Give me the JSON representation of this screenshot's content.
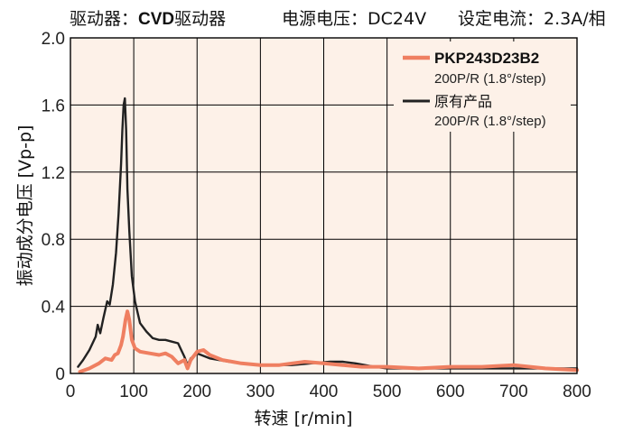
{
  "header": {
    "driver_label": "驱动器：",
    "driver_name": "CVD",
    "driver_suffix": "驱动器",
    "voltage": "电源电压：DC24V",
    "current": "设定电流：2.3A/相"
  },
  "colors": {
    "background": "#fdf1e8",
    "grid": "#000000",
    "new_series": "#ef7f61",
    "old_series": "#222222"
  },
  "chart_data": {
    "type": "line",
    "xlabel": "转速 [r/min]",
    "ylabel": "振动成分电压 [Vp-p]",
    "xlim": [
      0,
      800
    ],
    "ylim": [
      0,
      2.0
    ],
    "x_ticks": [
      0,
      100,
      200,
      300,
      400,
      500,
      600,
      700,
      800
    ],
    "y_ticks": [
      0,
      0.4,
      0.8,
      1.2,
      1.6,
      2.0
    ],
    "x_tick_labels": [
      "0",
      "100",
      "200",
      "300",
      "400",
      "500",
      "600",
      "700",
      "800"
    ],
    "y_tick_labels": [
      "0",
      "0.4",
      "0.8",
      "1.2",
      "1.6",
      "2.0"
    ],
    "grid": true,
    "legend_position": "top-right",
    "series": [
      {
        "name": "PKP243D23B2",
        "sub": "200P/R (1.8°/step)",
        "color": "#ef7f61",
        "x": [
          15,
          30,
          45,
          55,
          65,
          70,
          75,
          80,
          83,
          87,
          90,
          93,
          97,
          102,
          110,
          125,
          140,
          150,
          160,
          170,
          180,
          185,
          190,
          200,
          210,
          220,
          240,
          270,
          300,
          330,
          350,
          370,
          400,
          430,
          460,
          500,
          550,
          600,
          650,
          700,
          750,
          800
        ],
        "y": [
          0.01,
          0.03,
          0.06,
          0.09,
          0.08,
          0.11,
          0.12,
          0.17,
          0.22,
          0.32,
          0.37,
          0.32,
          0.2,
          0.15,
          0.13,
          0.12,
          0.11,
          0.12,
          0.1,
          0.06,
          0.08,
          0.03,
          0.08,
          0.13,
          0.14,
          0.11,
          0.08,
          0.06,
          0.05,
          0.05,
          0.06,
          0.07,
          0.06,
          0.05,
          0.04,
          0.04,
          0.03,
          0.04,
          0.04,
          0.05,
          0.03,
          0.02
        ]
      },
      {
        "name": "原有产品",
        "sub": "200P/R (1.8°/step)",
        "color": "#222222",
        "x": [
          12,
          20,
          30,
          40,
          43,
          47,
          52,
          58,
          62,
          67,
          72,
          76,
          80,
          82,
          84,
          86,
          88,
          90,
          93,
          97,
          102,
          110,
          120,
          130,
          140,
          150,
          160,
          170,
          175,
          180,
          185,
          190,
          200,
          220,
          250,
          300,
          350,
          380,
          410,
          430,
          450,
          480,
          500,
          550,
          600,
          650,
          700,
          750,
          800
        ],
        "y": [
          0.04,
          0.08,
          0.14,
          0.22,
          0.29,
          0.24,
          0.33,
          0.43,
          0.41,
          0.53,
          0.72,
          0.95,
          1.25,
          1.45,
          1.6,
          1.64,
          1.45,
          1.1,
          0.85,
          0.58,
          0.43,
          0.3,
          0.25,
          0.21,
          0.2,
          0.2,
          0.19,
          0.18,
          0.14,
          0.1,
          0.05,
          0.09,
          0.12,
          0.09,
          0.07,
          0.05,
          0.05,
          0.06,
          0.07,
          0.07,
          0.06,
          0.04,
          0.03,
          0.03,
          0.03,
          0.03,
          0.03,
          0.03,
          0.03
        ]
      }
    ]
  }
}
